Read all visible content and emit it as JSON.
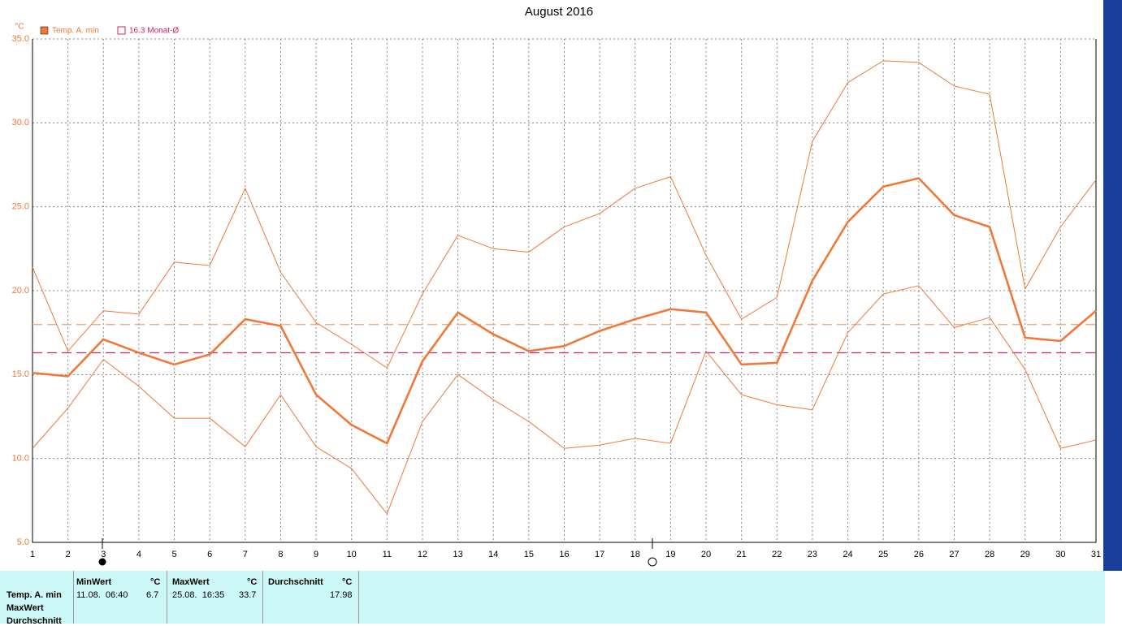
{
  "chart_data": {
    "type": "line",
    "title": "August 2016",
    "y_label": "°C",
    "x": [
      1,
      2,
      3,
      4,
      5,
      6,
      7,
      8,
      9,
      10,
      11,
      12,
      13,
      14,
      15,
      16,
      17,
      18,
      19,
      20,
      21,
      22,
      23,
      24,
      25,
      26,
      27,
      28,
      29,
      30,
      31
    ],
    "xlim": [
      1,
      31
    ],
    "xticks": [
      1,
      2,
      3,
      4,
      5,
      6,
      7,
      8,
      9,
      10,
      11,
      12,
      13,
      14,
      15,
      16,
      17,
      18,
      19,
      20,
      21,
      22,
      23,
      24,
      25,
      26,
      27,
      28,
      29,
      30,
      31
    ],
    "ylim": [
      5,
      35
    ],
    "yticks": [
      {
        "value": 5,
        "label": "5.0"
      },
      {
        "value": 10,
        "label": "10.0"
      },
      {
        "value": 15,
        "label": "15.0"
      },
      {
        "value": 20,
        "label": "20.0"
      },
      {
        "value": 25,
        "label": "25.0"
      },
      {
        "value": 30,
        "label": "30.0"
      },
      {
        "value": 35,
        "label": "35.0"
      }
    ],
    "grid": true,
    "series": [
      {
        "name": "Temp. A. min",
        "color": "#f07838",
        "values": [
          15.1,
          14.9,
          17.1,
          16.3,
          15.6,
          16.2,
          18.3,
          17.9,
          13.8,
          12.0,
          10.9,
          15.8,
          18.7,
          17.4,
          16.4,
          16.7,
          17.6,
          18.3,
          18.9,
          18.7,
          15.6,
          15.7,
          20.6,
          24.1,
          26.2,
          26.7,
          24.5,
          23.8,
          17.2,
          17.0,
          18.8
        ]
      },
      {
        "color": "#f07838",
        "values": [
          21.4,
          16.4,
          18.8,
          18.6,
          21.7,
          21.5,
          26.1,
          21.1,
          18.1,
          16.8,
          15.4,
          19.8,
          23.3,
          22.5,
          22.3,
          23.8,
          24.6,
          26.1,
          26.8,
          22.1,
          18.3,
          19.6,
          28.9,
          32.4,
          33.7,
          33.6,
          32.2,
          31.7,
          20.1,
          23.8,
          26.6
        ]
      },
      {
        "color": "#f07838",
        "values": [
          10.6,
          13.0,
          15.9,
          14.3,
          12.4,
          12.4,
          10.7,
          13.8,
          10.7,
          9.4,
          6.7,
          12.2,
          15.0,
          13.5,
          12.2,
          10.6,
          10.8,
          11.2,
          10.9,
          16.4,
          13.8,
          13.2,
          12.9,
          17.5,
          19.8,
          20.3,
          17.8,
          18.4,
          15.3,
          10.6,
          11.1
        ]
      }
    ],
    "hlines": [
      {
        "value": 17.98,
        "color": "#f4a070"
      },
      {
        "value": 16.3,
        "label": "16.3 Monat-Ø",
        "color": "#d0206a"
      }
    ]
  },
  "table": {
    "header": [
      "MinWert",
      "°C",
      "MaxWert",
      "°C",
      "Durchschnitt",
      "°C"
    ],
    "rows": [
      [
        "Temp. A. min",
        "11.08.  06:40",
        "6.7",
        "25.08.  16:35",
        "33.7",
        "17.98"
      ],
      [
        "MaxWert"
      ],
      [
        "Durchschnitt"
      ]
    ]
  }
}
